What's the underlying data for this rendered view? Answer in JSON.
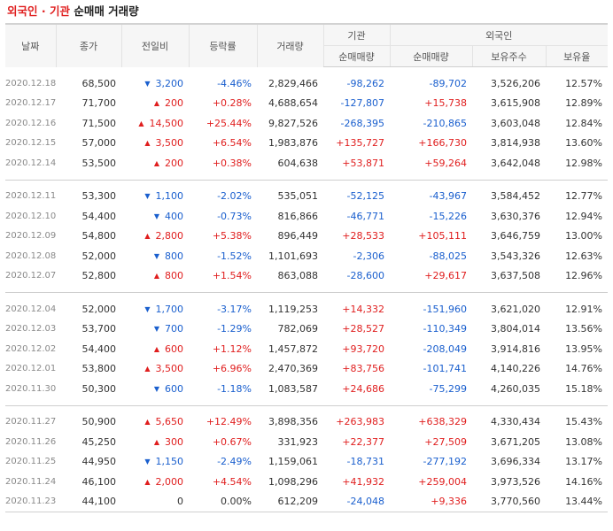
{
  "title": {
    "part1": "외국인 · 기관",
    "part2": "순매매 거래량"
  },
  "headers": {
    "date": "날짜",
    "close": "종가",
    "change": "전일비",
    "rate": "등락률",
    "volume": "거래량",
    "inst": "기관",
    "inst_net": "순매매량",
    "foreign": "외국인",
    "foreign_net": "순매매량",
    "holdings": "보유주수",
    "ratio": "보유율"
  },
  "colors": {
    "up": "#e01e1e",
    "down": "#1a5fce",
    "header_bg": "#f6f6f6"
  },
  "icons": {
    "up": "triangle-up-icon",
    "down": "triangle-down-icon"
  },
  "groups": [
    [
      {
        "date": "2020.12.18",
        "close": "68,500",
        "dir": "down",
        "change": "3,200",
        "rate": "-4.46%",
        "volume": "2,829,466",
        "inst": "-98,262",
        "foreign": "-89,702",
        "holdings": "3,526,206",
        "ratio": "12.57%"
      },
      {
        "date": "2020.12.17",
        "close": "71,700",
        "dir": "up",
        "change": "200",
        "rate": "+0.28%",
        "volume": "4,688,654",
        "inst": "-127,807",
        "foreign": "+15,738",
        "holdings": "3,615,908",
        "ratio": "12.89%"
      },
      {
        "date": "2020.12.16",
        "close": "71,500",
        "dir": "up",
        "change": "14,500",
        "rate": "+25.44%",
        "volume": "9,827,526",
        "inst": "-268,395",
        "foreign": "-210,865",
        "holdings": "3,603,048",
        "ratio": "12.84%"
      },
      {
        "date": "2020.12.15",
        "close": "57,000",
        "dir": "up",
        "change": "3,500",
        "rate": "+6.54%",
        "volume": "1,983,876",
        "inst": "+135,727",
        "foreign": "+166,730",
        "holdings": "3,814,938",
        "ratio": "13.60%"
      },
      {
        "date": "2020.12.14",
        "close": "53,500",
        "dir": "up",
        "change": "200",
        "rate": "+0.38%",
        "volume": "604,638",
        "inst": "+53,871",
        "foreign": "+59,264",
        "holdings": "3,642,048",
        "ratio": "12.98%"
      }
    ],
    [
      {
        "date": "2020.12.11",
        "close": "53,300",
        "dir": "down",
        "change": "1,100",
        "rate": "-2.02%",
        "volume": "535,051",
        "inst": "-52,125",
        "foreign": "-43,967",
        "holdings": "3,584,452",
        "ratio": "12.77%"
      },
      {
        "date": "2020.12.10",
        "close": "54,400",
        "dir": "down",
        "change": "400",
        "rate": "-0.73%",
        "volume": "816,866",
        "inst": "-46,771",
        "foreign": "-15,226",
        "holdings": "3,630,376",
        "ratio": "12.94%"
      },
      {
        "date": "2020.12.09",
        "close": "54,800",
        "dir": "up",
        "change": "2,800",
        "rate": "+5.38%",
        "volume": "896,449",
        "inst": "+28,533",
        "foreign": "+105,111",
        "holdings": "3,646,759",
        "ratio": "13.00%"
      },
      {
        "date": "2020.12.08",
        "close": "52,000",
        "dir": "down",
        "change": "800",
        "rate": "-1.52%",
        "volume": "1,101,693",
        "inst": "-2,306",
        "foreign": "-88,025",
        "holdings": "3,543,326",
        "ratio": "12.63%"
      },
      {
        "date": "2020.12.07",
        "close": "52,800",
        "dir": "up",
        "change": "800",
        "rate": "+1.54%",
        "volume": "863,088",
        "inst": "-28,600",
        "foreign": "+29,617",
        "holdings": "3,637,508",
        "ratio": "12.96%"
      }
    ],
    [
      {
        "date": "2020.12.04",
        "close": "52,000",
        "dir": "down",
        "change": "1,700",
        "rate": "-3.17%",
        "volume": "1,119,253",
        "inst": "+14,332",
        "foreign": "-151,960",
        "holdings": "3,621,020",
        "ratio": "12.91%"
      },
      {
        "date": "2020.12.03",
        "close": "53,700",
        "dir": "down",
        "change": "700",
        "rate": "-1.29%",
        "volume": "782,069",
        "inst": "+28,527",
        "foreign": "-110,349",
        "holdings": "3,804,014",
        "ratio": "13.56%"
      },
      {
        "date": "2020.12.02",
        "close": "54,400",
        "dir": "up",
        "change": "600",
        "rate": "+1.12%",
        "volume": "1,457,872",
        "inst": "+93,720",
        "foreign": "-208,049",
        "holdings": "3,914,816",
        "ratio": "13.95%"
      },
      {
        "date": "2020.12.01",
        "close": "53,800",
        "dir": "up",
        "change": "3,500",
        "rate": "+6.96%",
        "volume": "2,470,369",
        "inst": "+83,756",
        "foreign": "-101,741",
        "holdings": "4,140,226",
        "ratio": "14.76%"
      },
      {
        "date": "2020.11.30",
        "close": "50,300",
        "dir": "down",
        "change": "600",
        "rate": "-1.18%",
        "volume": "1,083,587",
        "inst": "+24,686",
        "foreign": "-75,299",
        "holdings": "4,260,035",
        "ratio": "15.18%"
      }
    ],
    [
      {
        "date": "2020.11.27",
        "close": "50,900",
        "dir": "up",
        "change": "5,650",
        "rate": "+12.49%",
        "volume": "3,898,356",
        "inst": "+263,983",
        "foreign": "+638,329",
        "holdings": "4,330,434",
        "ratio": "15.43%"
      },
      {
        "date": "2020.11.26",
        "close": "45,250",
        "dir": "up",
        "change": "300",
        "rate": "+0.67%",
        "volume": "331,923",
        "inst": "+22,377",
        "foreign": "+27,509",
        "holdings": "3,671,205",
        "ratio": "13.08%"
      },
      {
        "date": "2020.11.25",
        "close": "44,950",
        "dir": "down",
        "change": "1,150",
        "rate": "-2.49%",
        "volume": "1,159,061",
        "inst": "-18,731",
        "foreign": "-277,192",
        "holdings": "3,696,334",
        "ratio": "13.17%"
      },
      {
        "date": "2020.11.24",
        "close": "46,100",
        "dir": "up",
        "change": "2,000",
        "rate": "+4.54%",
        "volume": "1,098,296",
        "inst": "+41,932",
        "foreign": "+259,004",
        "holdings": "3,973,526",
        "ratio": "14.16%"
      },
      {
        "date": "2020.11.23",
        "close": "44,100",
        "dir": "none",
        "change": "0",
        "rate": "0.00%",
        "volume": "612,209",
        "inst": "-24,048",
        "foreign": "+9,336",
        "holdings": "3,770,560",
        "ratio": "13.44%"
      }
    ]
  ]
}
